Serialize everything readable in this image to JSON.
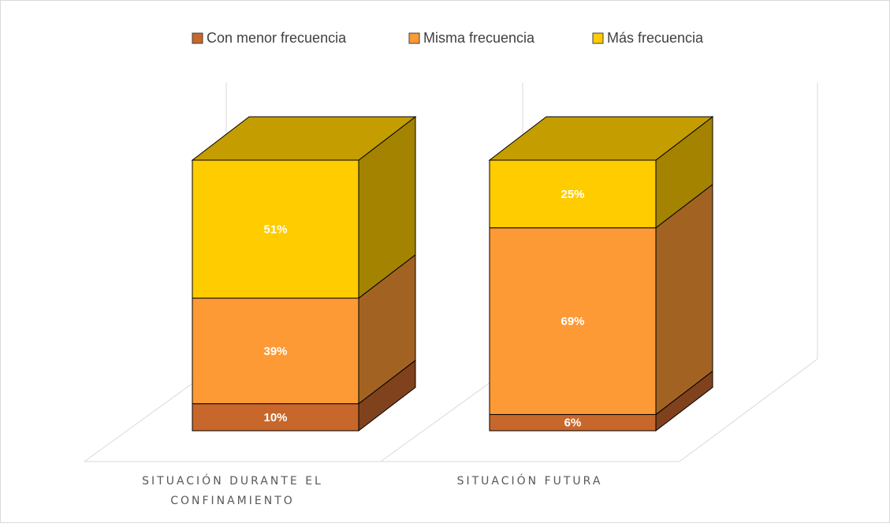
{
  "chart_data": {
    "type": "bar3d_stacked",
    "categories": [
      "SITUACIÓN DURANTE EL CONFINAMIENTO",
      "SITUACIÓN FUTURA"
    ],
    "series": [
      {
        "name": "Con menor frecuencia",
        "color": "#c8672b",
        "values": [
          10,
          6
        ],
        "value_labels": [
          "10%",
          "6%"
        ]
      },
      {
        "name": "Misma frecuencia",
        "color": "#fd9a35",
        "values": [
          39,
          69
        ],
        "value_labels": [
          "39%",
          "69%"
        ]
      },
      {
        "name": "Más frecuencia",
        "color": "#ffcc00",
        "values": [
          51,
          25
        ],
        "value_labels": [
          "51%",
          "25%"
        ]
      }
    ],
    "legend": "top"
  }
}
